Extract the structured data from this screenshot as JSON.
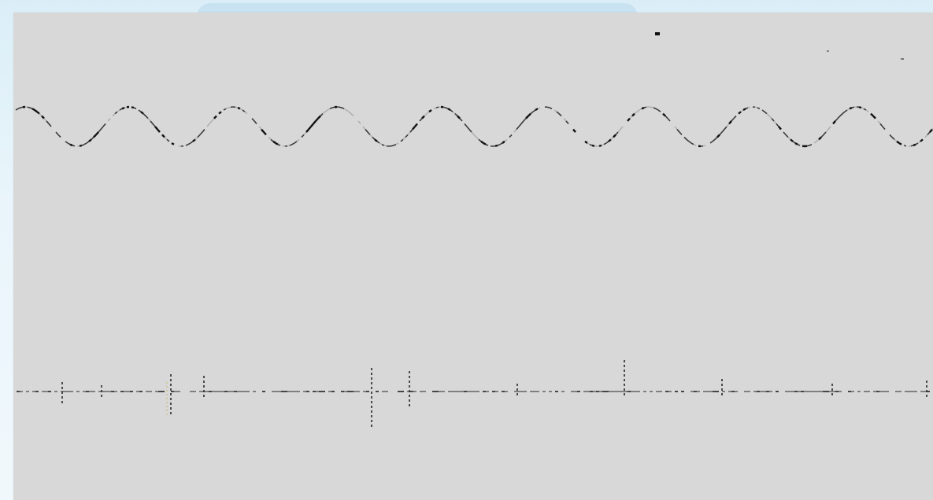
{
  "colors": {
    "page_background": "#e4f1f8",
    "panel_background": "#d8d8d8",
    "trace_ink": "#3a3a3a"
  },
  "icons": [
    "wave-trace",
    "pulse-trace"
  ]
}
